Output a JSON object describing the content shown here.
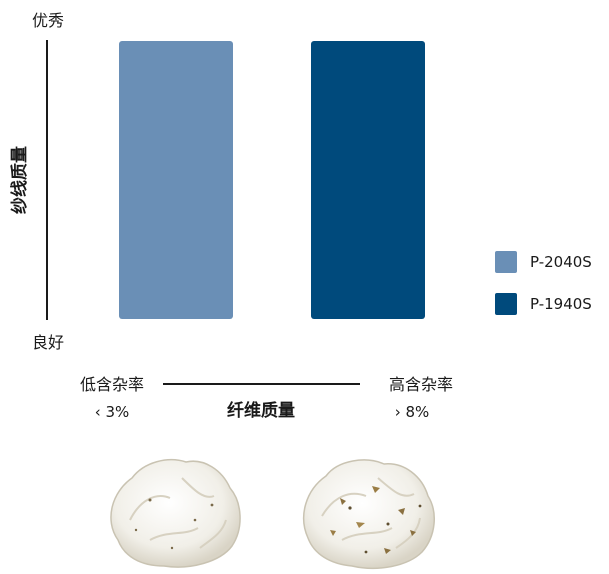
{
  "chart_data": {
    "type": "bar",
    "categories": [
      "P-2040S",
      "P-1940S"
    ],
    "values": [
      1,
      1
    ],
    "series": [
      {
        "name": "P-2040S",
        "color": "#6a8fb6"
      },
      {
        "name": "P-1940S",
        "color": "#004a7c"
      }
    ],
    "ylabel": "纱线质量",
    "y_top_label": "优秀",
    "y_bottom_label": "良好",
    "xlabel": "纤维质量",
    "x_left_label": "低含杂率",
    "x_left_sub": "‹ 3%",
    "x_right_label": "高含杂率",
    "x_right_sub": "› 8%",
    "ylim": [
      0,
      1
    ],
    "grid": false,
    "legend": "right"
  },
  "images": [
    {
      "name": "cotton-sample-low-trash"
    },
    {
      "name": "cotton-sample-high-trash"
    }
  ]
}
